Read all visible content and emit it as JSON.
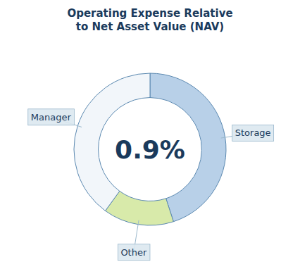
{
  "chart_data": {
    "type": "pie",
    "title": "Operating Expense Relative\nto Net Asset Value (NAV)",
    "categories": [
      "Storage",
      "Other",
      "Manager"
    ],
    "values": [
      45,
      15,
      40
    ],
    "colors": [
      "#b8d0e8",
      "#d8eaaa",
      "#f2f6fa"
    ],
    "annotations": [
      {
        "text": "0.9%"
      }
    ]
  }
}
